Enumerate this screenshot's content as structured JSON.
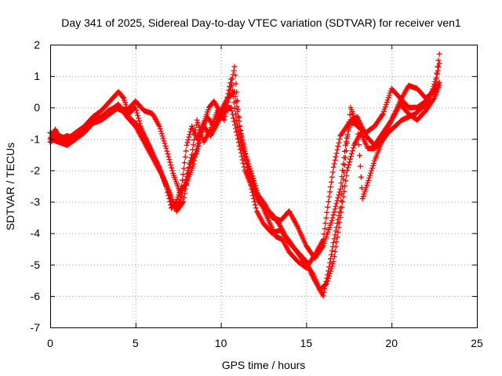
{
  "chart_data": {
    "type": "scatter",
    "title": "Day 341 of 2025, Sidereal Day-to-day VTEC variation (SDTVAR) for receiver ven1",
    "xlabel": "GPS time / hours",
    "ylabel": "SDTVAR / TECUs",
    "xlim": [
      0,
      25
    ],
    "ylim": [
      -7,
      2
    ],
    "xticks": [
      "0",
      "5",
      "10",
      "15",
      "20",
      "25"
    ],
    "yticks": [
      "2",
      "1",
      "0",
      "-1",
      "-2",
      "-3",
      "-4",
      "-5",
      "-6",
      "-7"
    ],
    "grid": true,
    "marker": "plus",
    "color": "#ff0000",
    "series": [
      {
        "x": [
          0.0,
          0.5,
          1.0,
          1.5,
          2.0,
          2.5,
          3.0,
          3.5,
          4.0,
          4.3,
          4.6,
          5.0,
          5.3,
          5.6,
          6.0,
          6.4,
          6.8,
          7.1,
          7.4,
          7.7,
          8.0,
          8.3,
          8.6,
          9.0,
          9.3,
          9.6,
          10.0,
          10.3,
          10.6,
          10.9,
          11.2,
          11.5,
          11.8,
          12.1,
          12.5,
          13.0,
          13.5,
          14.0,
          14.5,
          15.0,
          15.3,
          15.6,
          16.0,
          16.3,
          16.6,
          17.0,
          17.3,
          17.6,
          18.0,
          18.5,
          19.0,
          19.5,
          20.0,
          20.5,
          21.0,
          21.5,
          22.0,
          22.5,
          22.8
        ],
        "y": [
          -1.1,
          -0.9,
          -1.0,
          -0.8,
          -0.6,
          -0.3,
          -0.1,
          0.2,
          0.5,
          0.3,
          -0.2,
          0.0,
          -0.6,
          -1.0,
          -1.5,
          -1.9,
          -2.5,
          -3.2,
          -3.0,
          -2.5,
          -1.2,
          -0.6,
          -1.0,
          -0.5,
          0.0,
          0.2,
          -0.2,
          0.1,
          0.9,
          -0.4,
          -1.2,
          -1.8,
          -2.6,
          -3.3,
          -3.7,
          -4.0,
          -3.9,
          -4.3,
          -4.6,
          -4.9,
          -5.3,
          -5.6,
          -6.0,
          -5.2,
          -4.3,
          -3.2,
          -1.6,
          0.0,
          -0.6,
          -0.8,
          -0.6,
          -0.2,
          0.6,
          0.3,
          0.0,
          0.0,
          0.2,
          0.6,
          1.4
        ]
      },
      {
        "x": [
          0.0,
          0.5,
          1.0,
          1.5,
          2.0,
          2.5,
          3.0,
          3.5,
          4.0,
          4.5,
          5.0,
          5.5,
          6.0,
          6.5,
          7.0,
          7.3,
          7.6,
          8.0,
          8.3,
          8.6,
          9.0,
          9.4,
          9.8,
          10.2,
          10.5,
          10.8,
          11.1,
          11.4,
          11.8,
          12.2,
          12.6,
          13.0,
          13.5,
          14.0,
          14.5,
          15.0,
          15.5,
          16.0,
          16.5,
          17.0,
          17.3,
          17.6,
          18.0,
          18.5,
          19.0,
          19.5,
          20.0,
          20.5,
          21.0,
          21.5,
          22.0,
          22.5,
          22.8
        ],
        "y": [
          -1.0,
          -1.1,
          -1.2,
          -1.0,
          -0.8,
          -0.5,
          -0.3,
          -0.1,
          0.1,
          -0.3,
          -0.6,
          -1.1,
          -1.6,
          -2.1,
          -2.7,
          -3.2,
          -3.0,
          -2.2,
          -1.5,
          -0.4,
          -1.1,
          -0.7,
          -0.1,
          -0.4,
          0.4,
          1.3,
          -0.6,
          -1.4,
          -2.1,
          -2.8,
          -3.1,
          -3.5,
          -3.6,
          -3.3,
          -3.8,
          -4.4,
          -4.8,
          -4.4,
          -3.6,
          -2.6,
          -1.2,
          -0.4,
          -0.3,
          -0.9,
          -1.2,
          -0.8,
          -0.4,
          0.1,
          -0.2,
          -0.4,
          -0.1,
          0.3,
          0.7
        ]
      },
      {
        "x": [
          0.0,
          0.4,
          0.8,
          1.2,
          1.6,
          2.0,
          2.5,
          3.0,
          3.5,
          4.0,
          4.5,
          5.0,
          5.5,
          6.0,
          6.4,
          6.8,
          7.2,
          7.6,
          8.0,
          8.4,
          8.8,
          9.2,
          9.6,
          10.0,
          10.4,
          10.8,
          11.2,
          11.6,
          12.0,
          12.4,
          12.8,
          13.2,
          13.6,
          14.0,
          14.5,
          15.0,
          15.5,
          16.0,
          16.3,
          16.6,
          17.0,
          17.5,
          18.0,
          18.3,
          18.6,
          19.0,
          19.5,
          20.0,
          20.5,
          21.0,
          21.5,
          22.0,
          22.5,
          22.8
        ],
        "y": [
          -0.8,
          -0.9,
          -1.1,
          -1.1,
          -0.9,
          -0.7,
          -0.5,
          -0.4,
          -0.2,
          0.0,
          -0.1,
          0.2,
          -0.1,
          -0.2,
          -0.6,
          -1.3,
          -2.1,
          -2.7,
          -2.4,
          -1.8,
          -0.8,
          -0.3,
          -0.6,
          -0.1,
          0.3,
          0.5,
          -0.9,
          -1.9,
          -2.6,
          -3.1,
          -3.6,
          -4.1,
          -4.2,
          -4.6,
          -4.9,
          -5.1,
          -4.7,
          -4.2,
          -3.0,
          -1.9,
          -0.9,
          -0.5,
          -0.5,
          -2.9,
          -2.4,
          -1.7,
          -1.0,
          -0.4,
          0.2,
          0.7,
          0.6,
          0.3,
          0.5,
          0.8
        ]
      },
      {
        "x": [
          0.0,
          0.3,
          0.6,
          1.0,
          1.4,
          1.8,
          2.2,
          2.6,
          3.0,
          3.4,
          3.8,
          4.2,
          4.6,
          5.0,
          5.4,
          5.8,
          6.2,
          6.6,
          7.0,
          7.4,
          7.8,
          8.2,
          8.6,
          9.0,
          9.4,
          9.8,
          10.2,
          10.6,
          11.0,
          11.4,
          11.8,
          12.2,
          12.6,
          13.0,
          13.4,
          13.8,
          14.2,
          14.6,
          15.0,
          15.4,
          15.8,
          16.2,
          16.6,
          17.0,
          17.4,
          17.8,
          18.2,
          18.6,
          19.0,
          19.4,
          19.8,
          20.2,
          20.6,
          21.0,
          21.4,
          21.8,
          22.2,
          22.6,
          22.8
        ],
        "y": [
          -1.0,
          -0.7,
          -1.0,
          -0.9,
          -1.0,
          -0.8,
          -0.6,
          -0.4,
          -0.3,
          -0.1,
          0.0,
          -0.1,
          -0.3,
          -0.5,
          -0.8,
          -1.2,
          -1.7,
          -2.2,
          -2.8,
          -3.3,
          -3.0,
          -1.8,
          -1.4,
          -0.6,
          -0.9,
          -0.5,
          -0.1,
          0.0,
          -1.0,
          -2.0,
          -2.5,
          -3.0,
          -3.2,
          -3.4,
          -3.7,
          -4.1,
          -4.4,
          -4.7,
          -5.0,
          -5.3,
          -5.8,
          -5.6,
          -4.9,
          -3.5,
          -2.0,
          -1.2,
          -0.8,
          -1.3,
          -1.3,
          -1.1,
          -0.8,
          -0.6,
          -0.4,
          -0.3,
          -0.2,
          0.0,
          0.2,
          0.9,
          1.7
        ]
      }
    ]
  }
}
